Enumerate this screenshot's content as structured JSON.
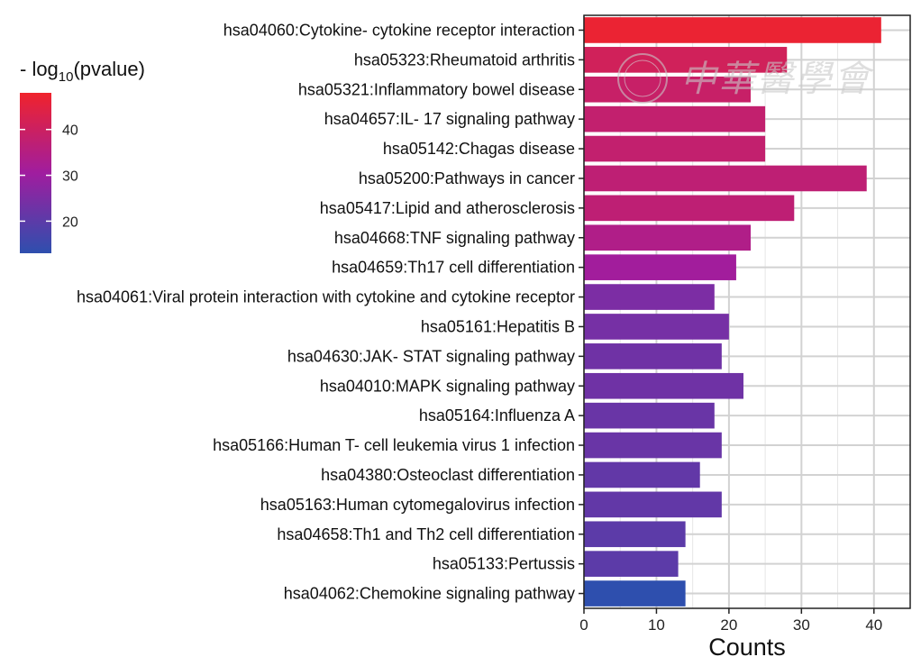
{
  "chart_data": {
    "type": "bar",
    "orientation": "horizontal",
    "categories": [
      "hsa04060:Cytokine- cytokine receptor interaction",
      "hsa05323:Rheumatoid arthritis",
      "hsa05321:Inflammatory bowel disease",
      "hsa04657:IL- 17 signaling pathway",
      "hsa05142:Chagas disease",
      "hsa05200:Pathways in cancer",
      "hsa05417:Lipid and atherosclerosis",
      "hsa04668:TNF signaling pathway",
      "hsa04659:Th17 cell differentiation",
      "hsa04061:Viral protein interaction with cytokine and cytokine receptor",
      "hsa05161:Hepatitis B",
      "hsa04630:JAK- STAT signaling pathway",
      "hsa04010:MAPK signaling pathway",
      "hsa05164:Influenza A",
      "hsa05166:Human T- cell leukemia virus 1 infection",
      "hsa04380:Osteoclast differentiation",
      "hsa05163:Human cytomegalovirus infection",
      "hsa04658:Th1 and Th2 cell differentiation",
      "hsa05133:Pertussis",
      "hsa04062:Chemokine signaling pathway"
    ],
    "values": [
      41,
      28,
      23,
      25,
      25,
      39,
      29,
      23,
      21,
      18,
      20,
      19,
      22,
      18,
      19,
      16,
      19,
      14,
      13,
      14
    ],
    "color_values": [
      47,
      41,
      39,
      38,
      38,
      37,
      37,
      34,
      31,
      25,
      24,
      23,
      23,
      22,
      22,
      21,
      21,
      20,
      20,
      13
    ],
    "xlabel": "Counts",
    "ylabel": "",
    "xlim": [
      0,
      45
    ],
    "xticks": [
      0,
      10,
      20,
      30,
      40
    ],
    "grid": true,
    "legend": {
      "title_prefix": "- log",
      "title_subscript": "10",
      "title_suffix": "(pvalue)",
      "ticks": [
        20,
        30,
        40
      ],
      "range": [
        13,
        48
      ],
      "placement": "top-left",
      "colors": {
        "low": "#2e4fae",
        "mid": "#a01d9f",
        "high": "#f0232c"
      }
    }
  },
  "watermark": {
    "text": "中華醫學會"
  }
}
